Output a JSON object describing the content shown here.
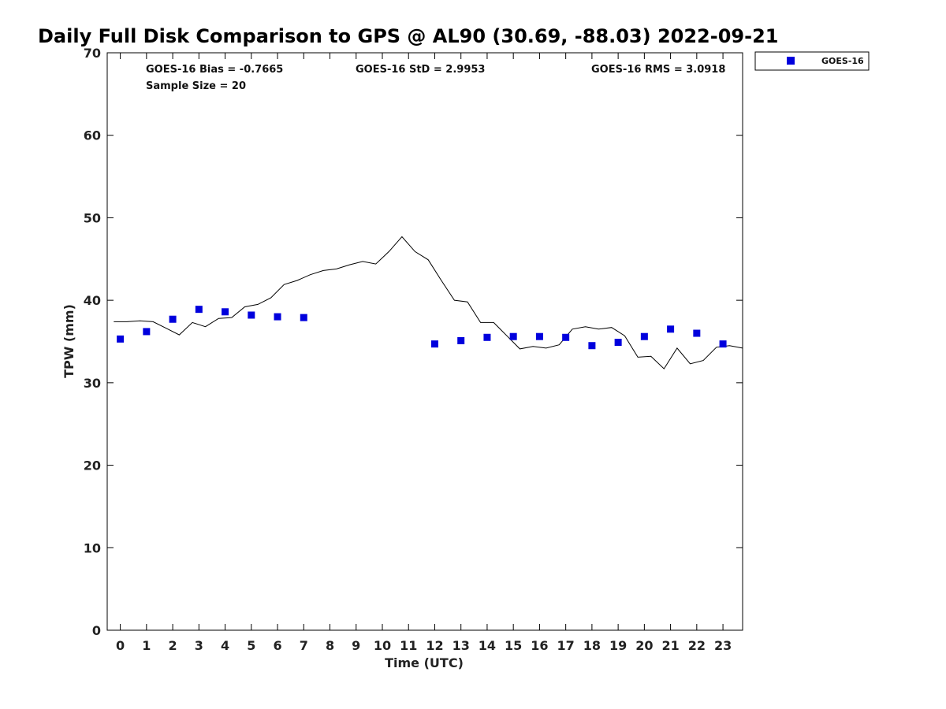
{
  "chart_data": {
    "type": "scatter",
    "title": "Daily Full Disk Comparison to GPS @ AL90 (30.69, -88.03) 2022-09-21",
    "xlabel": "Time (UTC)",
    "ylabel": "TPW (mm)",
    "xlim": [
      -0.5,
      23.75
    ],
    "ylim": [
      0,
      70
    ],
    "xticks": [
      0,
      1,
      2,
      3,
      4,
      5,
      6,
      7,
      8,
      9,
      10,
      11,
      12,
      13,
      14,
      15,
      16,
      17,
      18,
      19,
      20,
      21,
      22,
      23
    ],
    "yticks": [
      0,
      10,
      20,
      30,
      40,
      50,
      60,
      70
    ],
    "grid": false,
    "legend_position": "top-right, outside plot",
    "stats": {
      "bias": "GOES-16 Bias = -0.7665",
      "std": "GOES-16 StD = 2.9953",
      "rms": "GOES-16 RMS = 3.0918",
      "sample": "Sample Size = 20"
    },
    "series": [
      {
        "name": "GOES-16",
        "marker": "square",
        "color": "#0000dd",
        "points": [
          {
            "x": 0,
            "y": 35.3
          },
          {
            "x": 1,
            "y": 36.2
          },
          {
            "x": 2,
            "y": 37.7
          },
          {
            "x": 3,
            "y": 38.9
          },
          {
            "x": 4,
            "y": 38.6
          },
          {
            "x": 5,
            "y": 38.2
          },
          {
            "x": 6,
            "y": 38.0
          },
          {
            "x": 7,
            "y": 37.9
          },
          {
            "x": 12,
            "y": 34.7
          },
          {
            "x": 13,
            "y": 35.1
          },
          {
            "x": 14,
            "y": 35.5
          },
          {
            "x": 15,
            "y": 35.6
          },
          {
            "x": 16,
            "y": 35.6
          },
          {
            "x": 17,
            "y": 35.5
          },
          {
            "x": 18,
            "y": 34.5
          },
          {
            "x": 19,
            "y": 34.9
          },
          {
            "x": 20,
            "y": 35.6
          },
          {
            "x": 21,
            "y": 36.5
          },
          {
            "x": 22,
            "y": 36.0
          },
          {
            "x": 23,
            "y": 34.7
          }
        ]
      },
      {
        "marker": "line",
        "color": "#000000",
        "points": [
          {
            "x": -0.25,
            "y": 37.4
          },
          {
            "x": 0.25,
            "y": 37.4
          },
          {
            "x": 0.75,
            "y": 37.5
          },
          {
            "x": 1.25,
            "y": 37.4
          },
          {
            "x": 1.75,
            "y": 36.6
          },
          {
            "x": 2.25,
            "y": 35.8
          },
          {
            "x": 2.75,
            "y": 37.3
          },
          {
            "x": 3.25,
            "y": 36.8
          },
          {
            "x": 3.75,
            "y": 37.8
          },
          {
            "x": 4.25,
            "y": 37.9
          },
          {
            "x": 4.75,
            "y": 39.2
          },
          {
            "x": 5.25,
            "y": 39.5
          },
          {
            "x": 5.75,
            "y": 40.3
          },
          {
            "x": 6.25,
            "y": 41.9
          },
          {
            "x": 6.75,
            "y": 42.4
          },
          {
            "x": 7.25,
            "y": 43.1
          },
          {
            "x": 7.75,
            "y": 43.6
          },
          {
            "x": 8.25,
            "y": 43.8
          },
          {
            "x": 8.75,
            "y": 44.3
          },
          {
            "x": 9.25,
            "y": 44.7
          },
          {
            "x": 9.75,
            "y": 44.4
          },
          {
            "x": 10.25,
            "y": 45.9
          },
          {
            "x": 10.75,
            "y": 47.7
          },
          {
            "x": 11.25,
            "y": 45.9
          },
          {
            "x": 11.75,
            "y": 44.9
          },
          {
            "x": 12.25,
            "y": 42.4
          },
          {
            "x": 12.75,
            "y": 40.0
          },
          {
            "x": 13.25,
            "y": 39.8
          },
          {
            "x": 13.75,
            "y": 37.3
          },
          {
            "x": 14.25,
            "y": 37.3
          },
          {
            "x": 14.75,
            "y": 35.7
          },
          {
            "x": 15.25,
            "y": 34.1
          },
          {
            "x": 15.75,
            "y": 34.4
          },
          {
            "x": 16.25,
            "y": 34.2
          },
          {
            "x": 16.75,
            "y": 34.6
          },
          {
            "x": 17.25,
            "y": 36.5
          },
          {
            "x": 17.75,
            "y": 36.8
          },
          {
            "x": 18.25,
            "y": 36.5
          },
          {
            "x": 18.75,
            "y": 36.7
          },
          {
            "x": 19.25,
            "y": 35.7
          },
          {
            "x": 19.75,
            "y": 33.1
          },
          {
            "x": 20.25,
            "y": 33.2
          },
          {
            "x": 20.75,
            "y": 31.7
          },
          {
            "x": 21.25,
            "y": 34.2
          },
          {
            "x": 21.75,
            "y": 32.3
          },
          {
            "x": 22.25,
            "y": 32.7
          },
          {
            "x": 22.75,
            "y": 34.3
          },
          {
            "x": 23.25,
            "y": 34.5
          },
          {
            "x": 23.75,
            "y": 34.2
          }
        ]
      }
    ]
  }
}
